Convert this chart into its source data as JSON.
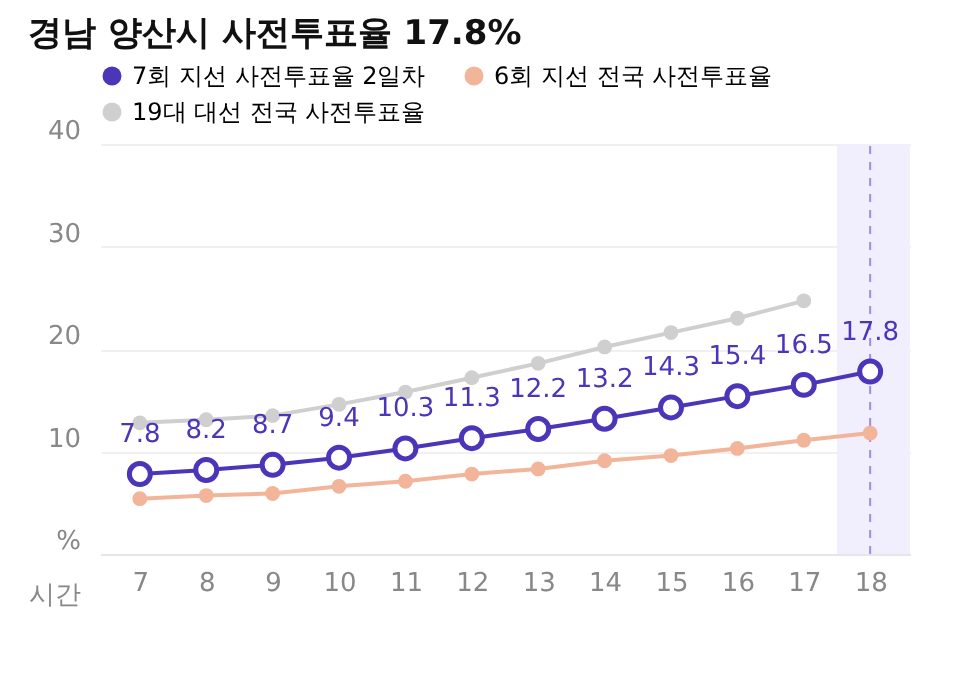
{
  "chart_data": {
    "type": "line",
    "title": "경남 양산시 사전투표율 17.8%",
    "xlabel": "시간",
    "x": [
      7,
      8,
      9,
      10,
      11,
      12,
      13,
      14,
      15,
      16,
      17,
      18
    ],
    "series": [
      {
        "name": "7회 지선 사전투표율 2일차",
        "color": "#4b35b8",
        "values": [
          7.8,
          8.2,
          8.7,
          9.4,
          10.3,
          11.3,
          12.2,
          13.2,
          14.3,
          15.4,
          16.5,
          17.8
        ],
        "data_labels": true
      },
      {
        "name": "6회 지선 전국 사전투표율",
        "color": "#f2b59a",
        "values": [
          5.4,
          5.7,
          5.9,
          6.6,
          7.1,
          7.8,
          8.3,
          9.1,
          9.6,
          10.3,
          11.1,
          11.8
        ]
      },
      {
        "name": "19대 대선 전국 사전투표율",
        "color": "#cfcfcf",
        "values": [
          12.8,
          13.1,
          13.5,
          14.6,
          15.8,
          17.2,
          18.6,
          20.2,
          21.6,
          23.0,
          24.7,
          null
        ]
      }
    ],
    "xlim": [
      6.4,
      18.6
    ],
    "xticks": [
      7,
      8,
      9,
      10,
      11,
      12,
      13,
      14,
      15,
      16,
      17,
      18
    ],
    "ylim": [
      0,
      40
    ],
    "yticks": [
      {
        "value": 0,
        "label": "%"
      },
      10,
      20,
      30,
      40
    ],
    "bands": [
      {
        "axis": "x",
        "from": 17.5,
        "to": 18.6,
        "color": "#f1effd"
      }
    ],
    "ref_lines": [
      {
        "axis": "x",
        "value": 18,
        "color": "#9b8ee0",
        "line_style": "dashed"
      }
    ],
    "grid": "y",
    "legend": "top left",
    "marker": "circle",
    "line_style": "solid"
  }
}
